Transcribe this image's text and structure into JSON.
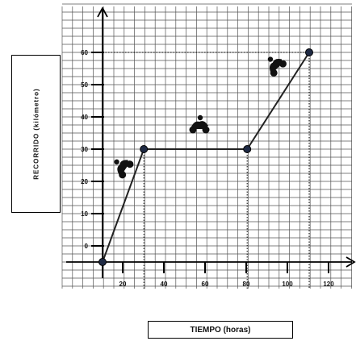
{
  "chart_data": {
    "type": "line",
    "xlabel": "TIEMPO (horas)",
    "ylabel": "RECORRIDO (kilómetro)",
    "x_ticks": [
      "20",
      "40",
      "60",
      "80",
      "100",
      "120"
    ],
    "y_ticks": [
      "0",
      "10",
      "20",
      "30",
      "40",
      "50",
      "60"
    ],
    "xlim": [
      0,
      120
    ],
    "ylim": [
      0,
      60
    ],
    "grid": true,
    "series": [
      {
        "x": [
          0,
          20,
          70,
          100
        ],
        "y": [
          -5,
          30,
          30,
          60
        ]
      }
    ],
    "markers": [
      {
        "x": 0,
        "y": -5
      },
      {
        "x": 20,
        "y": 30
      },
      {
        "x": 70,
        "y": 30
      },
      {
        "x": 100,
        "y": 60
      }
    ],
    "icons": [
      "motorcycle-icon",
      "motorcycle-icon",
      "motorcycle-icon"
    ]
  }
}
